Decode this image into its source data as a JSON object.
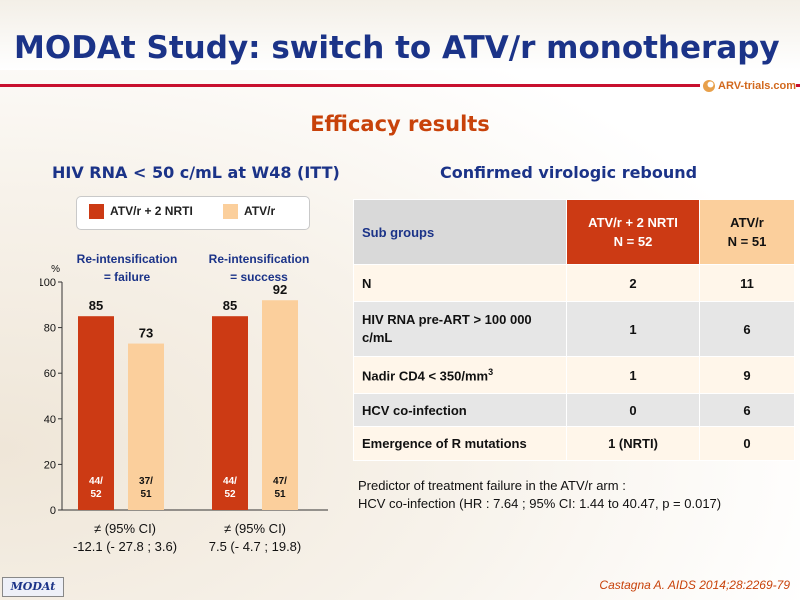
{
  "title": "MODAt Study: switch to ATV/r monotherapy",
  "logo_text": "ARV-trials.com",
  "section_title": "Efficacy results",
  "left_heading": "HIV RNA < 50 c/mL at W48 (ITT)",
  "right_heading": "Confirmed virologic rebound",
  "legend": [
    {
      "label": "ATV/r + 2 NRTI",
      "color": "#cc3a14"
    },
    {
      "label": "ATV/r",
      "color": "#fbcf9c"
    }
  ],
  "groups": [
    {
      "label_line1": "Re-intensification",
      "label_line2": "= failure",
      "diff_line1": "≠ (95% CI)",
      "diff_line2": "-12.1 (- 27.8 ; 3.6)"
    },
    {
      "label_line1": "Re-intensification",
      "label_line2": "= success",
      "diff_line1": "≠ (95% CI)",
      "diff_line2": "7.5 (- 4.7 ; 19.8)"
    }
  ],
  "chart_data": {
    "type": "bar",
    "y_unit": "%",
    "ylim": [
      0,
      100
    ],
    "yticks": [
      0,
      20,
      40,
      60,
      80,
      100
    ],
    "bars": [
      {
        "group": 0,
        "series": 0,
        "value": 85,
        "label": "85",
        "n_top": "44/",
        "n_bottom": "52"
      },
      {
        "group": 0,
        "series": 1,
        "value": 73,
        "label": "73",
        "n_top": "37/",
        "n_bottom": "51"
      },
      {
        "group": 1,
        "series": 0,
        "value": 85,
        "label": "85",
        "n_top": "44/",
        "n_bottom": "52"
      },
      {
        "group": 1,
        "series": 1,
        "value": 92,
        "label": "92",
        "n_top": "47/",
        "n_bottom": "51"
      }
    ],
    "series_colors": [
      "#cc3a14",
      "#fbcf9c"
    ]
  },
  "table": {
    "header": {
      "col1": "Sub groups",
      "col2_line1": "ATV/r + 2 NRTI",
      "col2_line2": "N = 52",
      "col3_line1": "ATV/r",
      "col3_line2": "N = 51"
    },
    "rows": [
      {
        "label": "N",
        "v1": "2",
        "v2": "11"
      },
      {
        "label": "HIV RNA pre-ART > 100 000 c/mL",
        "v1": "1",
        "v2": "6"
      },
      {
        "label": "Nadir CD4 < 350/mm",
        "label_sup": "3",
        "v1": "1",
        "v2": "9"
      },
      {
        "label": "HCV co-infection",
        "v1": "0",
        "v2": "6"
      },
      {
        "label": "Emergence of R mutations",
        "v1": "1 (NRTI)",
        "v2": "0"
      }
    ]
  },
  "predictor": {
    "line1": "Predictor of treatment failure in the ATV/r arm :",
    "line2": "HCV co-infection (HR : 7.64 ; 95% CI: 1.44 to 40.47, p = 0.017)"
  },
  "footer_badge": "MODAt",
  "citation": "Castagna A. AIDS 2014;28:2269-79"
}
